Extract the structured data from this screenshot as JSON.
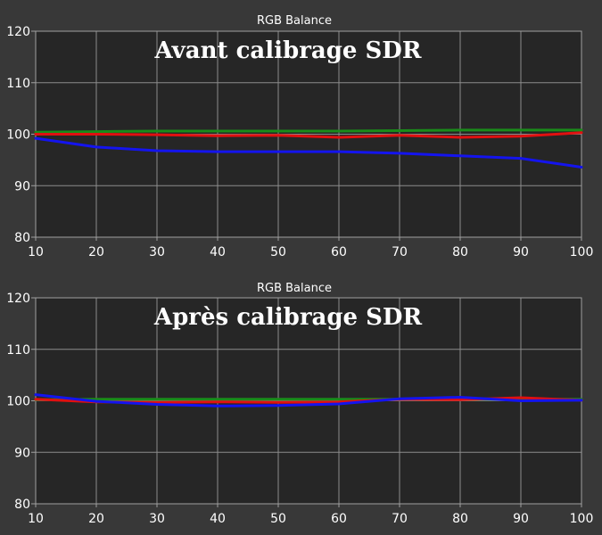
{
  "chart_data": [
    {
      "type": "line",
      "title": "RGB Balance",
      "annotation": "Avant calibrage SDR",
      "x": [
        10,
        20,
        30,
        40,
        50,
        60,
        70,
        80,
        90,
        100
      ],
      "xlim": [
        10,
        100
      ],
      "ylim": [
        80,
        120
      ],
      "xticks": [
        10,
        20,
        30,
        40,
        50,
        60,
        70,
        80,
        90,
        100
      ],
      "yticks": [
        80,
        90,
        100,
        110,
        120
      ],
      "grid": true,
      "series": [
        {
          "color": "#1a8c1a",
          "values": [
            100.4,
            100.5,
            100.6,
            100.6,
            100.6,
            100.6,
            100.7,
            100.8,
            100.8,
            100.8
          ]
        },
        {
          "color": "#e01010",
          "values": [
            100.0,
            100.0,
            99.9,
            99.7,
            99.8,
            99.4,
            99.8,
            99.4,
            99.6,
            100.3
          ]
        },
        {
          "color": "#1414ee",
          "values": [
            99.2,
            97.5,
            96.8,
            96.6,
            96.6,
            96.6,
            96.3,
            95.8,
            95.3,
            93.6
          ]
        }
      ]
    },
    {
      "type": "line",
      "title": "RGB Balance",
      "annotation": "Après calibrage SDR",
      "x": [
        10,
        20,
        30,
        40,
        50,
        60,
        70,
        80,
        90,
        100
      ],
      "xlim": [
        10,
        100
      ],
      "ylim": [
        80,
        120
      ],
      "xticks": [
        10,
        20,
        30,
        40,
        50,
        60,
        70,
        80,
        90,
        100
      ],
      "yticks": [
        80,
        90,
        100,
        110,
        120
      ],
      "grid": true,
      "series": [
        {
          "color": "#1a8c1a",
          "values": [
            100.2,
            100.3,
            100.3,
            100.3,
            100.3,
            100.3,
            100.3,
            100.3,
            100.3,
            100.3
          ]
        },
        {
          "color": "#e01010",
          "values": [
            100.3,
            99.8,
            99.7,
            99.8,
            99.7,
            99.8,
            100.3,
            100.2,
            100.6,
            100.1
          ]
        },
        {
          "color": "#1414ee",
          "values": [
            101.2,
            99.9,
            99.3,
            99.0,
            99.1,
            99.4,
            100.4,
            100.7,
            100.0,
            100.1
          ]
        }
      ]
    }
  ]
}
